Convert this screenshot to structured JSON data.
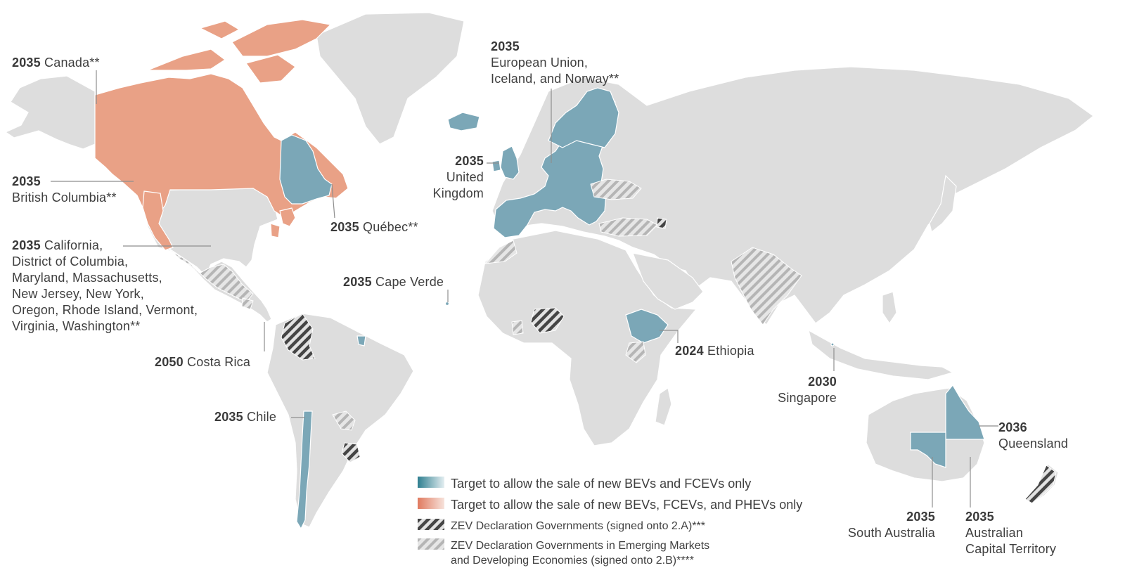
{
  "colors": {
    "land": "#dddddd",
    "border": "#ffffff",
    "bev_teal": "#7ba7b7",
    "bev_teal_dark": "#2f7f90",
    "phev_salmon": "#e9a186",
    "phev_salmon_dark": "#e07a5f",
    "hatch_dark": "#454545",
    "hatch_light": "#b5b5b5",
    "leader": "#8e8e8e"
  },
  "labels": [
    {
      "id": "canada",
      "year": "2035",
      "text": [
        "Canada**"
      ]
    },
    {
      "id": "british-columbia",
      "year": "2035",
      "text": [
        "British Columbia**"
      ]
    },
    {
      "id": "california",
      "year": "2035",
      "text": [
        "California,",
        "District of Columbia,",
        "Maryland, Massachusetts,",
        "New Jersey, New York,",
        "Oregon, Rhode Island, Vermont,",
        "Virginia, Washington**"
      ]
    },
    {
      "id": "quebec",
      "year": "2035",
      "text": [
        "Québec**"
      ]
    },
    {
      "id": "costa-rica",
      "year": "2050",
      "text": [
        "Costa Rica"
      ]
    },
    {
      "id": "chile",
      "year": "2035",
      "text": [
        "Chile"
      ]
    },
    {
      "id": "cape-verde",
      "year": "2035",
      "text": [
        "Cape Verde"
      ]
    },
    {
      "id": "eu",
      "year": "2035",
      "text": [
        "European Union,",
        "Iceland, and Norway**"
      ]
    },
    {
      "id": "uk",
      "year": "2035",
      "text": [
        "United",
        "Kingdom"
      ]
    },
    {
      "id": "ethiopia",
      "year": "2024",
      "text": [
        "Ethiopia"
      ]
    },
    {
      "id": "singapore",
      "year": "2030",
      "text": [
        "Singapore"
      ]
    },
    {
      "id": "queensland",
      "year": "2036",
      "text": [
        "Queensland"
      ]
    },
    {
      "id": "south-australia",
      "year": "2035",
      "text": [
        "South Australia"
      ]
    },
    {
      "id": "act",
      "year": "2035",
      "text": [
        "Australian",
        "Capital Territory"
      ]
    }
  ],
  "legend": [
    {
      "key": "bev",
      "text": [
        "Target to allow the sale of new BEVs and FCEVs only"
      ]
    },
    {
      "key": "phev",
      "text": [
        "Target to allow the sale of new BEVs, FCEVs, and PHEVs only"
      ]
    },
    {
      "key": "zev-2a",
      "text": [
        "ZEV Declaration Governments (signed onto 2.A)***"
      ]
    },
    {
      "key": "zev-2b",
      "text": [
        "ZEV Declaration Governments in Emerging Markets",
        "and Developing Economies (signed onto 2.B)****"
      ]
    }
  ]
}
